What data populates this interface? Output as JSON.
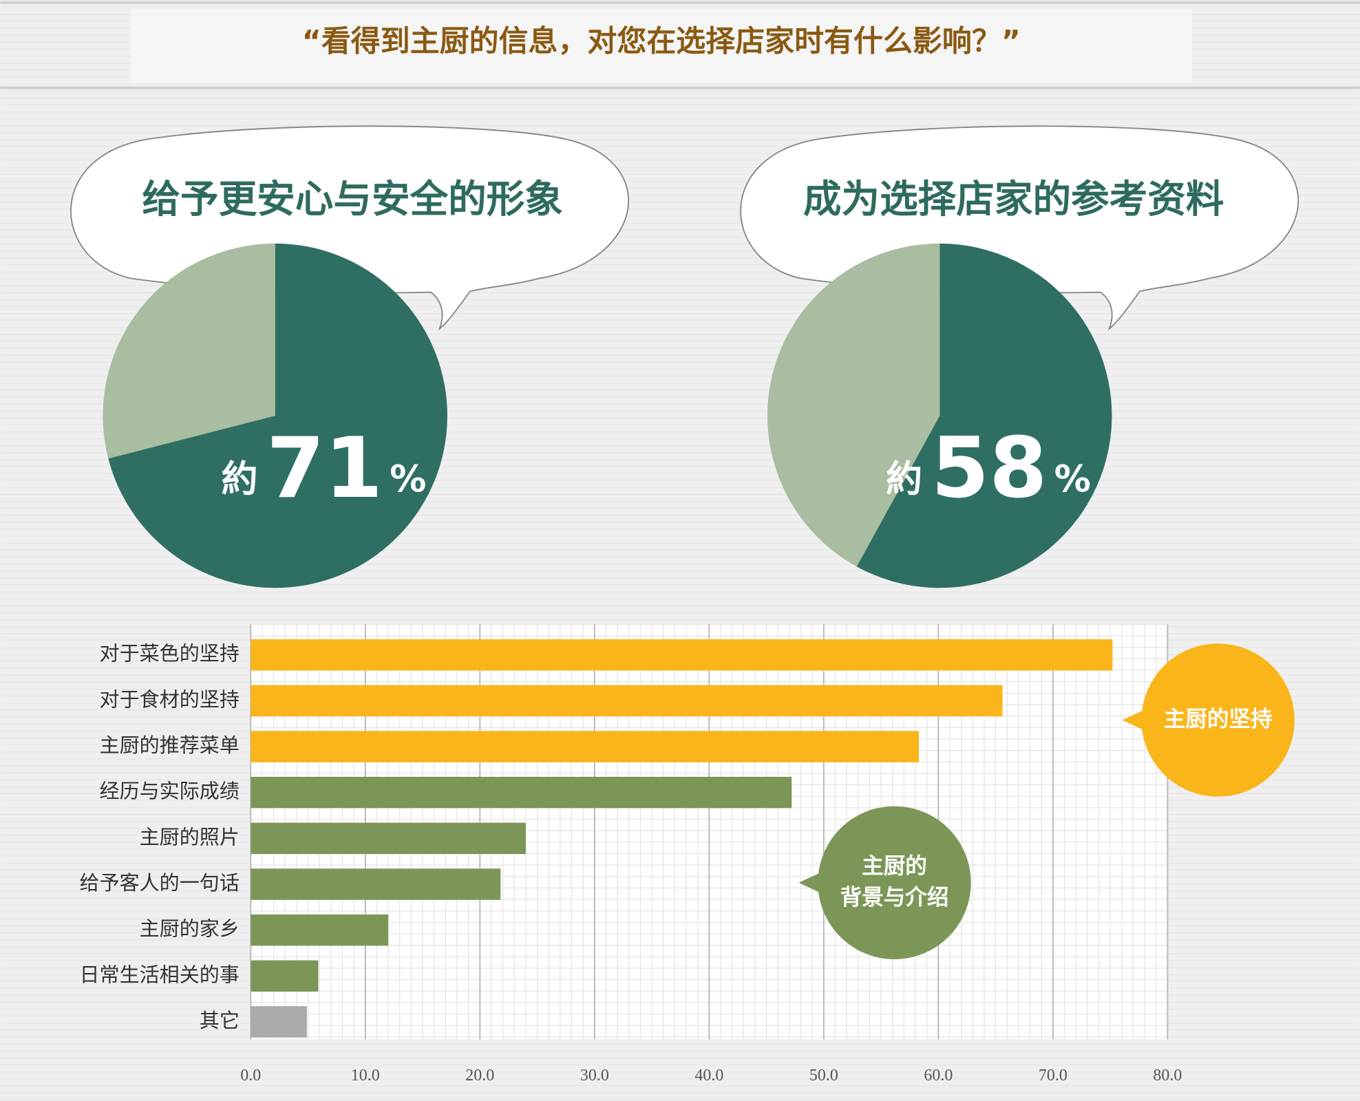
{
  "title": "“看得到主厨的信息，对您在选择店家时有什么影响？”",
  "chart_data": [
    {
      "type": "pie",
      "title": "给予更安心与安全的形象",
      "values": [
        71,
        29
      ],
      "colors": [
        "#2f6f63",
        "#a9bda0"
      ],
      "label_prefix": "約",
      "label_unit": "%"
    },
    {
      "type": "pie",
      "title": "成为选择店家的参考资料",
      "values": [
        58,
        42
      ],
      "colors": [
        "#2f6f63",
        "#a9bda0"
      ],
      "label_prefix": "約",
      "label_unit": "%"
    },
    {
      "type": "bar",
      "orientation": "horizontal",
      "categories": [
        "对于菜色的坚持",
        "对于食材的坚持",
        "主厨的推荐菜单",
        "经历与实际成绩",
        "主厨的照片",
        "给予客人的一句话",
        "主厨的家乡",
        "日常生活相关的事",
        "其它"
      ],
      "values": [
        75.2,
        65.6,
        58.3,
        47.2,
        24.0,
        21.8,
        12.0,
        5.9,
        4.9
      ],
      "colors": [
        "#f9b51a",
        "#f9b51a",
        "#f9b51a",
        "#7c9658",
        "#7c9658",
        "#7c9658",
        "#7c9658",
        "#7c9658",
        "#aaaaaa"
      ],
      "xlim": [
        0,
        80
      ],
      "xticks": [
        {
          "value": 0,
          "label": "0.0"
        },
        {
          "value": 10,
          "label": "10.0"
        },
        {
          "value": 20,
          "label": "20.0"
        },
        {
          "value": 30,
          "label": "30.0"
        },
        {
          "value": 40,
          "label": "40.0"
        },
        {
          "value": 50,
          "label": "50.0"
        },
        {
          "value": 60,
          "label": "60.0"
        },
        {
          "value": 70,
          "label": "70.0"
        },
        {
          "value": 80,
          "label": "80.0"
        }
      ],
      "grid": true,
      "annotations": [
        {
          "lines": [
            "主厨的坚持"
          ],
          "color": "#f9b51a"
        },
        {
          "lines": [
            "主厨的",
            "背景与介绍"
          ],
          "color": "#7c9658"
        }
      ]
    }
  ]
}
